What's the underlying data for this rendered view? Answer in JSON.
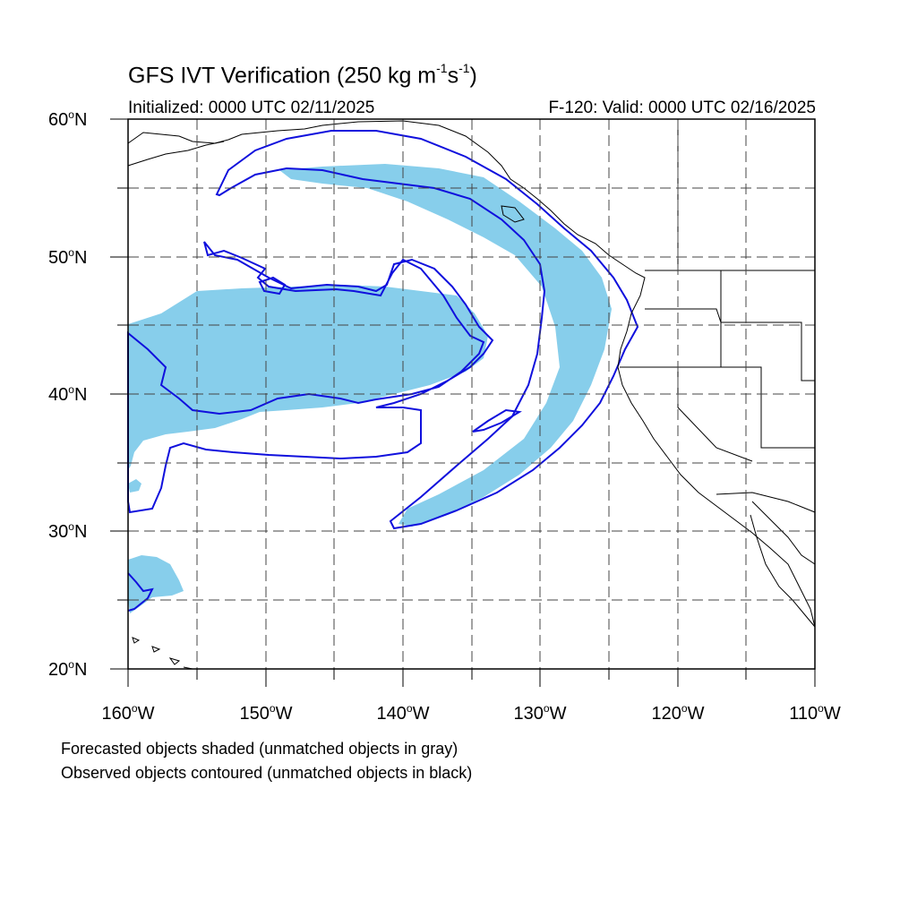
{
  "title": {
    "text_main": "GFS IVT Verification (250 kg m",
    "sup1": "-1",
    "text_mid": "s",
    "sup2": "-1",
    "text_end": ")"
  },
  "initialized": "Initialized: 0000 UTC 02/11/2025",
  "valid": "F-120: Valid: 0000 UTC 02/16/2025",
  "lat_labels": [
    {
      "num": "60",
      "suffix": "N"
    },
    {
      "num": "50",
      "suffix": "N"
    },
    {
      "num": "40",
      "suffix": "N"
    },
    {
      "num": "30",
      "suffix": "N"
    },
    {
      "num": "20",
      "suffix": "N"
    }
  ],
  "lon_labels": [
    {
      "num": "160",
      "suffix": "W"
    },
    {
      "num": "150",
      "suffix": "W"
    },
    {
      "num": "140",
      "suffix": "W"
    },
    {
      "num": "130",
      "suffix": "W"
    },
    {
      "num": "120",
      "suffix": "W"
    },
    {
      "num": "110",
      "suffix": "W"
    }
  ],
  "degree_symbol": "o",
  "caption_line1": "Forecasted objects shaded (unmatched objects in gray)",
  "caption_line2": "Observed objects contoured (unmatched objects in black)",
  "colors": {
    "forecast_fill": "#87ceeb",
    "observed_contour": "#1010dd",
    "coastline": "#000000",
    "grid": "#555555"
  },
  "map_extent": {
    "lon_min": -160,
    "lon_max": -110,
    "lat_min": 20,
    "lat_max": 60,
    "grid_lon_step": 5,
    "grid_lat_step": 5
  }
}
